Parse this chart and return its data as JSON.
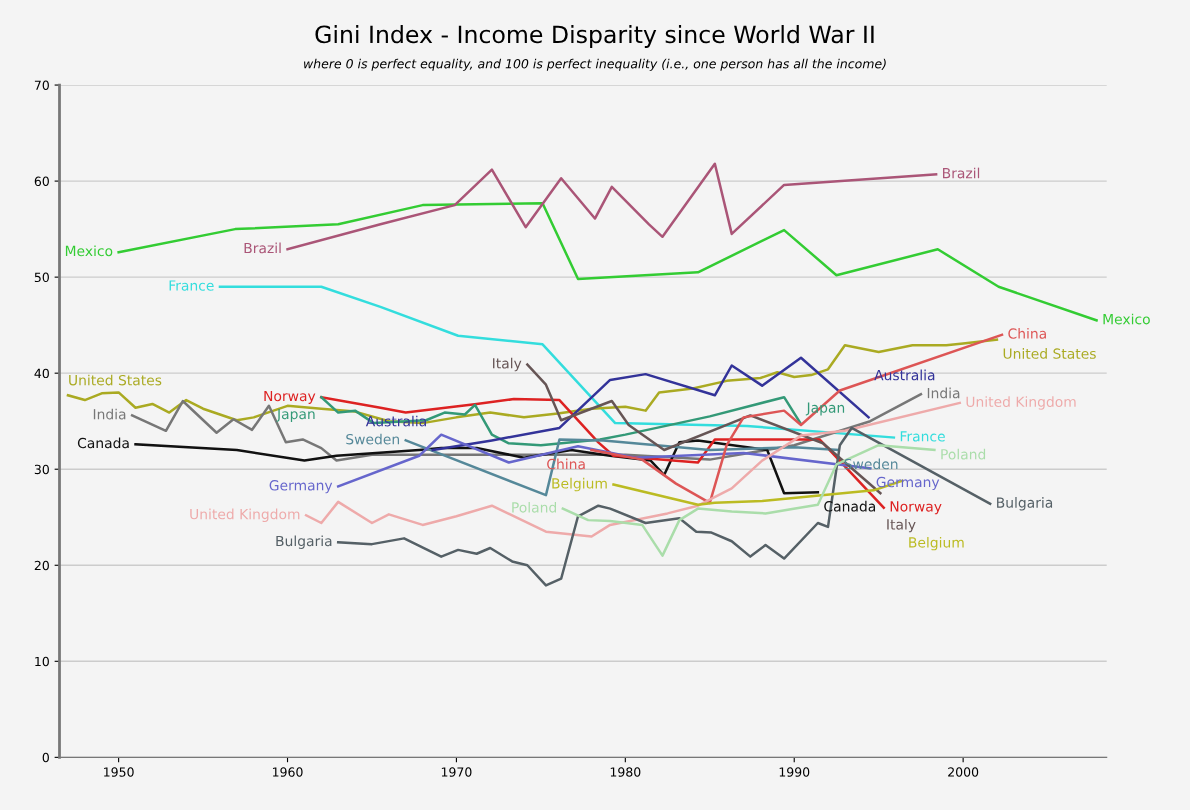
{
  "chart_data": {
    "type": "line",
    "title": "Gini Index - Income Disparity since World War II",
    "subtitle": "where 0 is perfect equality, and 100 is perfect inequality (i.e., one person has all the income)",
    "xlim": [
      1946.5,
      2008.5
    ],
    "xticks": [
      1950,
      1960,
      1970,
      1980,
      1990,
      2000
    ],
    "ylim": [
      0,
      70
    ],
    "yticks": [
      0,
      10,
      20,
      30,
      40,
      50,
      60,
      70
    ],
    "grid": "y",
    "legend": false,
    "line_style": "solid",
    "marker": "none",
    "series": [
      {
        "name": "Mexico",
        "color": "#33cc33",
        "x": [
          1950,
          1956.9,
          1963,
          1968,
          1975.1,
          1977.2,
          1984.3,
          1989.4,
          1992.5,
          1998.5,
          2002.1,
          2007.9
        ],
        "values": [
          52.6,
          55.0,
          55.5,
          57.5,
          57.7,
          49.8,
          50.5,
          54.9,
          50.2,
          52.9,
          49.0,
          45.5
        ]
      },
      {
        "name": "Brazil",
        "color": "#aa5577",
        "x": [
          1960,
          1965.5,
          1969.9,
          1972.1,
          1974.1,
          1976.2,
          1978.2,
          1979.2,
          1981.4,
          1982.2,
          1985.3,
          1986.3,
          1989.4,
          1998.4
        ],
        "values": [
          52.9,
          55.5,
          57.5,
          61.2,
          55.2,
          60.3,
          56.1,
          59.4,
          55.5,
          54.2,
          61.8,
          54.5,
          59.6,
          60.7
        ]
      },
      {
        "name": "France",
        "color": "#33dddd",
        "x": [
          1956,
          1962,
          1965.5,
          1970.1,
          1975.1,
          1979.4,
          1987.2,
          1995.9
        ],
        "values": [
          49.0,
          49.0,
          46.9,
          43.9,
          43.0,
          34.8,
          34.5,
          33.3
        ]
      },
      {
        "name": "United States",
        "color": "#aaaa22",
        "x": [
          1947,
          1948,
          1949,
          1950,
          1951,
          1952,
          1953,
          1954,
          1955,
          1956,
          1957,
          1958,
          1959,
          1960,
          1962,
          1964,
          1966,
          1968,
          1970,
          1972,
          1974,
          1976,
          1978,
          1980,
          1981.2,
          1982,
          1984,
          1986,
          1988,
          1989,
          1990,
          1991,
          1992,
          1993,
          1995,
          1997,
          1999,
          2000,
          2002
        ],
        "values": [
          37.7,
          37.2,
          37.9,
          38.0,
          36.4,
          36.8,
          35.9,
          37.2,
          36.3,
          35.7,
          35.1,
          35.4,
          36.0,
          36.6,
          36.3,
          36.0,
          35.0,
          34.8,
          35.4,
          35.9,
          35.4,
          35.8,
          36.3,
          36.5,
          36.1,
          38.0,
          38.4,
          39.2,
          39.5,
          40.1,
          39.6,
          39.8,
          40.4,
          42.9,
          42.2,
          42.9,
          42.9,
          43.1,
          43.5
        ]
      },
      {
        "name": "India",
        "color": "#777777",
        "x": [
          1950.8,
          1952.8,
          1953.8,
          1955.8,
          1956.8,
          1957.9,
          1958.9,
          1959.9,
          1960.9,
          1962,
          1962.9,
          1965,
          1970,
          1975,
          1980,
          1985,
          1990,
          1994.5,
          1997.5
        ],
        "values": [
          35.6,
          34.0,
          37.1,
          33.8,
          35.2,
          34.1,
          36.6,
          32.8,
          33.1,
          32.2,
          30.9,
          31.5,
          31.5,
          31.5,
          31.5,
          31.0,
          32.5,
          35.0,
          37.8
        ]
      },
      {
        "name": "Canada",
        "color": "#111111",
        "x": [
          1951,
          1957,
          1961,
          1962.9,
          1967.8,
          1969.1,
          1971.2,
          1974,
          1976.8,
          1979.1,
          1981.5,
          1982.3,
          1983.2,
          1984.3,
          1988.4,
          1989.4,
          1991.4
        ],
        "values": [
          32.6,
          32.0,
          30.9,
          31.4,
          32.0,
          32.2,
          32.2,
          31.2,
          32.0,
          31.4,
          30.9,
          29.4,
          32.8,
          33.0,
          32.0,
          27.5,
          27.6
        ]
      },
      {
        "name": "Norway",
        "color": "#dd2222",
        "x": [
          1962,
          1965.5,
          1967,
          1971.2,
          1973.4,
          1976.1,
          1978.4,
          1979.3,
          1984.3,
          1985.3,
          1991.5,
          1995.3
        ],
        "values": [
          37.5,
          36.4,
          35.9,
          36.8,
          37.3,
          37.2,
          32.8,
          31.4,
          30.7,
          33.1,
          33.1,
          26.0
        ]
      },
      {
        "name": "Japan",
        "color": "#339977",
        "x": [
          1962,
          1963,
          1964,
          1965.1,
          1968.2,
          1969.3,
          1970.5,
          1971.1,
          1972.1,
          1973.1,
          1975,
          1978.5,
          1980,
          1985,
          1989.4,
          1990.4
        ],
        "values": [
          37.5,
          35.9,
          36.1,
          34.8,
          35.1,
          35.9,
          35.7,
          36.7,
          33.6,
          32.7,
          32.5,
          33.1,
          33.6,
          35.5,
          37.5,
          34.7
        ]
      },
      {
        "name": "Sweden",
        "color": "#558899",
        "x": [
          1967,
          1975.3,
          1976.1,
          1978.7,
          1985,
          1990,
          1992.6
        ],
        "values": [
          33.0,
          27.3,
          33.1,
          33.0,
          32.0,
          32.3,
          32.0
        ]
      },
      {
        "name": "Australia",
        "color": "#333399",
        "x": [
          1968.6,
          1972.1,
          1976.1,
          1979.1,
          1981.2,
          1985.3,
          1986.3,
          1988.1,
          1990.4,
          1994.4
        ],
        "values": [
          32.0,
          33.0,
          34.3,
          39.3,
          39.9,
          37.7,
          40.8,
          38.7,
          41.6,
          35.4
        ]
      },
      {
        "name": "Germany",
        "color": "#6666cc",
        "x": [
          1963,
          1967.8,
          1969.1,
          1973.1,
          1977.2,
          1980.6,
          1987,
          1994.5
        ],
        "values": [
          28.2,
          31.4,
          33.6,
          30.7,
          32.4,
          31.2,
          31.7,
          30.1
        ]
      },
      {
        "name": "Italy",
        "color": "#665555",
        "x": [
          1974.2,
          1975.3,
          1976.2,
          1979.2,
          1980.2,
          1982.3,
          1987.4,
          1991.7,
          1995.1
        ],
        "values": [
          40.9,
          38.8,
          35.1,
          37.1,
          34.6,
          32.0,
          35.6,
          32.7,
          27.5
        ]
      },
      {
        "name": "China",
        "color": "#dd5555",
        "x": [
          1978,
          1981,
          1983,
          1985,
          1986,
          1987,
          1989.4,
          1990.4,
          1992.7,
          2002.3
        ],
        "values": [
          32.0,
          31.0,
          28.5,
          26.5,
          32.5,
          35.4,
          36.1,
          34.6,
          38.2,
          44.0
        ]
      },
      {
        "name": "United Kingdom",
        "color": "#eeaaaa",
        "x": [
          1961.1,
          1962,
          1963,
          1965,
          1966,
          1968,
          1970,
          1972.1,
          1975.3,
          1978,
          1979.1,
          1982.5,
          1984.3,
          1986.3,
          1988.1,
          1990.4,
          1993,
          1999.8
        ],
        "values": [
          25.2,
          24.4,
          26.6,
          24.4,
          25.3,
          24.2,
          25.1,
          26.2,
          23.5,
          23.0,
          24.2,
          25.4,
          26.2,
          28.0,
          30.9,
          33.5,
          34.0,
          36.9
        ]
      },
      {
        "name": "Bulgaria",
        "color": "#556066",
        "x": [
          1963,
          1965,
          1966.9,
          1969.1,
          1970.1,
          1971.2,
          1972,
          1973.3,
          1974.2,
          1975.3,
          1976.2,
          1977.2,
          1978.4,
          1979.1,
          1981.2,
          1983.2,
          1984.2,
          1985.1,
          1986.3,
          1987.4,
          1988.3,
          1989.4,
          1991.4,
          1992,
          1992.7,
          1993.4,
          2001.6
        ],
        "values": [
          22.4,
          22.2,
          22.8,
          20.9,
          21.6,
          21.2,
          21.8,
          20.4,
          20.0,
          17.9,
          18.6,
          25.1,
          26.2,
          25.9,
          24.4,
          24.9,
          23.5,
          23.4,
          22.5,
          20.9,
          22.1,
          20.7,
          24.4,
          24.0,
          32.5,
          34.3,
          26.4
        ]
      },
      {
        "name": "Belgium",
        "color": "#bbbb22",
        "x": [
          1979.3,
          1984.3,
          1985.3,
          1988.1,
          1994.7,
          1996.4
        ],
        "values": [
          28.4,
          26.3,
          26.5,
          26.7,
          27.8,
          28.8
        ]
      },
      {
        "name": "Poland",
        "color": "#aaddaa",
        "x": [
          1976.3,
          1977.8,
          1979.1,
          1981,
          1982.2,
          1983.2,
          1984.3,
          1986.3,
          1988.3,
          1991.4,
          1992.5,
          1995,
          1998.3
        ],
        "values": [
          25.9,
          24.7,
          24.6,
          24.2,
          21.0,
          24.7,
          25.9,
          25.6,
          25.4,
          26.3,
          30.5,
          32.5,
          32.0
        ]
      }
    ]
  }
}
